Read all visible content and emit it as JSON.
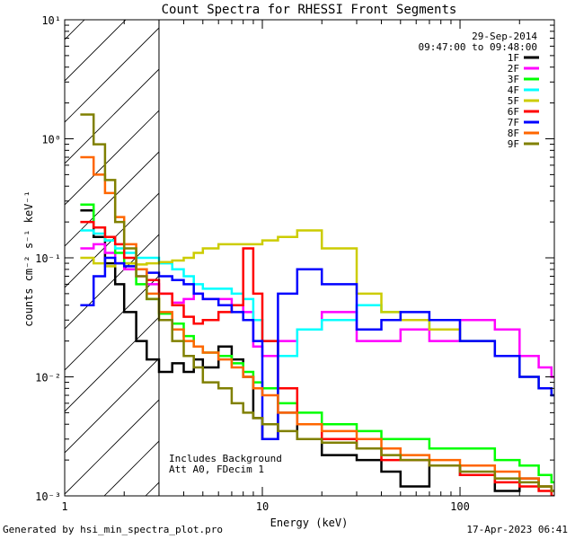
{
  "chart_data": {
    "type": "line",
    "title": "Count Spectra for RHESSI Front Segments",
    "xlabel": "Energy (keV)",
    "ylabel": "counts cm⁻² s⁻¹ keV⁻¹",
    "xscale": "log",
    "yscale": "log",
    "xlim": [
      1,
      300
    ],
    "ylim": [
      0.001,
      10
    ],
    "x_ticks": [
      {
        "value": 1,
        "label": "1"
      },
      {
        "value": 10,
        "label": "10"
      },
      {
        "value": 100,
        "label": "100"
      }
    ],
    "y_ticks": [
      {
        "value": 10,
        "label": "10¹"
      },
      {
        "value": 1,
        "label": "10⁰"
      },
      {
        "value": 0.1,
        "label": "10⁻¹"
      },
      {
        "value": 0.01,
        "label": "10⁻²"
      },
      {
        "value": 0.001,
        "label": "10⁻³"
      }
    ],
    "date": "29-Sep-2014",
    "time_range": "09:47:00 to 09:48:00",
    "hatch_region": [
      1,
      3
    ],
    "annotations": [
      "Includes Background",
      "Att A0, FDecim 1"
    ],
    "legend_location": "top-right",
    "series": [
      {
        "name": "1F",
        "color": "#000000",
        "x": [
          1.2,
          1.4,
          1.6,
          1.8,
          2.0,
          2.3,
          2.6,
          3.0,
          3.5,
          4.0,
          4.5,
          5.0,
          6.0,
          7.0,
          8.0,
          9.0,
          10,
          12,
          15,
          20,
          30,
          40,
          50,
          70,
          100,
          150,
          200,
          250,
          290
        ],
        "y": [
          0.25,
          0.15,
          0.09,
          0.06,
          0.035,
          0.02,
          0.014,
          0.011,
          0.013,
          0.011,
          0.014,
          0.012,
          0.018,
          0.014,
          0.01,
          0.0045,
          0.003,
          0.005,
          0.003,
          0.0022,
          0.002,
          0.0016,
          0.0012,
          0.0018,
          0.0015,
          0.0011,
          0.0014,
          0.0012,
          0.0011
        ]
      },
      {
        "name": "2F",
        "color": "#ff00ff",
        "x": [
          1.2,
          1.4,
          1.6,
          1.8,
          2.0,
          2.3,
          2.6,
          3.0,
          3.5,
          4.0,
          4.5,
          5.0,
          6.0,
          7.0,
          8.0,
          9.0,
          10,
          12,
          15,
          20,
          30,
          40,
          50,
          70,
          100,
          150,
          200,
          250,
          290
        ],
        "y": [
          0.12,
          0.13,
          0.11,
          0.09,
          0.08,
          0.07,
          0.06,
          0.05,
          0.042,
          0.045,
          0.05,
          0.045,
          0.045,
          0.04,
          0.035,
          0.018,
          0.015,
          0.02,
          0.025,
          0.035,
          0.02,
          0.02,
          0.025,
          0.02,
          0.03,
          0.025,
          0.015,
          0.012,
          0.01
        ]
      },
      {
        "name": "3F",
        "color": "#00ff00",
        "x": [
          1.2,
          1.4,
          1.6,
          1.8,
          2.0,
          2.3,
          2.6,
          3.0,
          3.5,
          4.0,
          4.5,
          5.0,
          6.0,
          7.0,
          8.0,
          9.0,
          10,
          12,
          15,
          20,
          30,
          40,
          50,
          70,
          100,
          150,
          200,
          250,
          290
        ],
        "y": [
          0.28,
          0.18,
          0.14,
          0.11,
          0.09,
          0.06,
          0.045,
          0.034,
          0.028,
          0.022,
          0.018,
          0.016,
          0.015,
          0.013,
          0.011,
          0.009,
          0.008,
          0.006,
          0.005,
          0.004,
          0.0035,
          0.003,
          0.003,
          0.0025,
          0.0025,
          0.002,
          0.0018,
          0.0015,
          0.0013
        ]
      },
      {
        "name": "4F",
        "color": "#00ffff",
        "x": [
          1.2,
          1.4,
          1.6,
          1.8,
          2.0,
          2.3,
          2.6,
          3.0,
          3.5,
          4.0,
          4.5,
          5.0,
          6.0,
          7.0,
          8.0,
          9.0,
          10,
          12,
          15,
          20,
          30,
          40,
          50,
          70,
          100,
          150,
          200,
          250,
          290
        ],
        "y": [
          0.17,
          0.16,
          0.14,
          0.12,
          0.11,
          0.1,
          0.1,
          0.09,
          0.08,
          0.07,
          0.06,
          0.055,
          0.055,
          0.05,
          0.045,
          0.03,
          0.02,
          0.015,
          0.025,
          0.03,
          0.04,
          0.035,
          0.03,
          0.025,
          0.02,
          0.015,
          0.01,
          0.008,
          0.007
        ]
      },
      {
        "name": "5F",
        "color": "#cccc00",
        "x": [
          1.2,
          1.4,
          1.6,
          1.8,
          2.0,
          2.3,
          2.6,
          3.0,
          3.5,
          4.0,
          4.5,
          5.0,
          6.0,
          7.0,
          8.0,
          9.0,
          10,
          12,
          15,
          20,
          30,
          40,
          50,
          70,
          100,
          150,
          200,
          250,
          290
        ],
        "y": [
          0.1,
          0.09,
          0.085,
          0.09,
          0.09,
          0.088,
          0.09,
          0.092,
          0.095,
          0.1,
          0.11,
          0.12,
          0.13,
          0.13,
          0.13,
          0.13,
          0.14,
          0.15,
          0.17,
          0.12,
          0.05,
          0.035,
          0.03,
          0.025,
          0.02,
          0.015,
          0.01,
          0.008,
          0.007
        ]
      },
      {
        "name": "6F",
        "color": "#ff0000",
        "x": [
          1.2,
          1.4,
          1.6,
          1.8,
          2.0,
          2.3,
          2.6,
          3.0,
          3.5,
          4.0,
          4.5,
          5.0,
          6.0,
          7.0,
          8.0,
          9.0,
          10,
          12,
          15,
          20,
          30,
          40,
          50,
          70,
          100,
          150,
          200,
          250,
          290
        ],
        "y": [
          0.2,
          0.18,
          0.15,
          0.13,
          0.1,
          0.08,
          0.065,
          0.05,
          0.04,
          0.032,
          0.028,
          0.03,
          0.035,
          0.04,
          0.12,
          0.05,
          0.02,
          0.008,
          0.004,
          0.003,
          0.0025,
          0.002,
          0.002,
          0.0018,
          0.0015,
          0.0013,
          0.0012,
          0.0011,
          0.001
        ]
      },
      {
        "name": "7F",
        "color": "#0000ff",
        "x": [
          1.2,
          1.4,
          1.6,
          1.8,
          2.0,
          2.3,
          2.6,
          3.0,
          3.5,
          4.0,
          4.5,
          5.0,
          6.0,
          7.0,
          8.0,
          9.0,
          10,
          12,
          15,
          20,
          30,
          40,
          50,
          70,
          100,
          150,
          200,
          250,
          290
        ],
        "y": [
          0.04,
          0.07,
          0.1,
          0.09,
          0.085,
          0.08,
          0.075,
          0.07,
          0.065,
          0.06,
          0.05,
          0.045,
          0.04,
          0.035,
          0.03,
          0.02,
          0.003,
          0.05,
          0.08,
          0.06,
          0.025,
          0.03,
          0.035,
          0.03,
          0.02,
          0.015,
          0.01,
          0.008,
          0.007
        ]
      },
      {
        "name": "8F",
        "color": "#ff6600",
        "x": [
          1.2,
          1.4,
          1.6,
          1.8,
          2.0,
          2.3,
          2.6,
          3.0,
          3.5,
          4.0,
          4.5,
          5.0,
          6.0,
          7.0,
          8.0,
          9.0,
          10,
          12,
          15,
          20,
          30,
          40,
          50,
          70,
          100,
          150,
          200,
          250,
          290
        ],
        "y": [
          0.7,
          0.5,
          0.35,
          0.22,
          0.13,
          0.08,
          0.05,
          0.035,
          0.025,
          0.02,
          0.018,
          0.016,
          0.014,
          0.012,
          0.01,
          0.008,
          0.007,
          0.005,
          0.004,
          0.0035,
          0.003,
          0.0025,
          0.0022,
          0.002,
          0.0018,
          0.0016,
          0.0014,
          0.0012,
          0.0011
        ]
      },
      {
        "name": "9F",
        "color": "#808000",
        "x": [
          1.2,
          1.4,
          1.6,
          1.8,
          2.0,
          2.3,
          2.6,
          3.0,
          3.5,
          4.0,
          4.5,
          5.0,
          6.0,
          7.0,
          8.0,
          9.0,
          10,
          12,
          15,
          20,
          30,
          40,
          50,
          70,
          100,
          150,
          200,
          250,
          290
        ],
        "y": [
          1.6,
          0.9,
          0.45,
          0.2,
          0.12,
          0.07,
          0.045,
          0.03,
          0.02,
          0.015,
          0.012,
          0.009,
          0.008,
          0.006,
          0.005,
          0.0045,
          0.004,
          0.0035,
          0.003,
          0.0028,
          0.0025,
          0.0022,
          0.002,
          0.0018,
          0.0016,
          0.0014,
          0.0013,
          0.0012,
          0.0011
        ]
      }
    ]
  },
  "footer": {
    "generated_by": "Generated by hsi_min_spectra_plot.pro",
    "timestamp": "17-Apr-2023 06:41"
  }
}
